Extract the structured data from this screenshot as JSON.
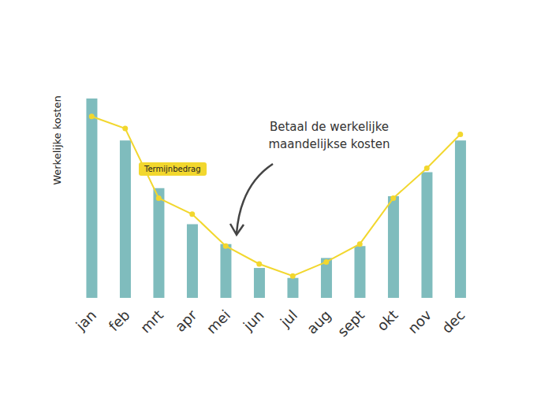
{
  "chart_data": {
    "type": "bar",
    "y_label": "Werkelijke kosten",
    "annotations": [
      "Betaal de werkelijke\nmaandelijkse kosten"
    ],
    "categories": [
      "jan",
      "feb",
      "mrt",
      "apr",
      "mei",
      "jun",
      "jul",
      "aug",
      "sept",
      "okt",
      "nov",
      "dec"
    ],
    "series": [
      {
        "type": "bar",
        "color": "#7fbcbd",
        "values": [
          100,
          79,
          55,
          37,
          27,
          15,
          10,
          20,
          26,
          51,
          63,
          79
        ]
      },
      {
        "name": "Termijnbedrag",
        "type": "line",
        "color": "#f2d72e",
        "marker": "circle",
        "values": [
          91,
          85,
          50,
          42,
          26,
          17,
          11,
          18,
          27,
          50,
          65,
          82
        ]
      }
    ],
    "ylim": [
      0,
      100
    ],
    "tick_labels": "x",
    "grid": false
  }
}
